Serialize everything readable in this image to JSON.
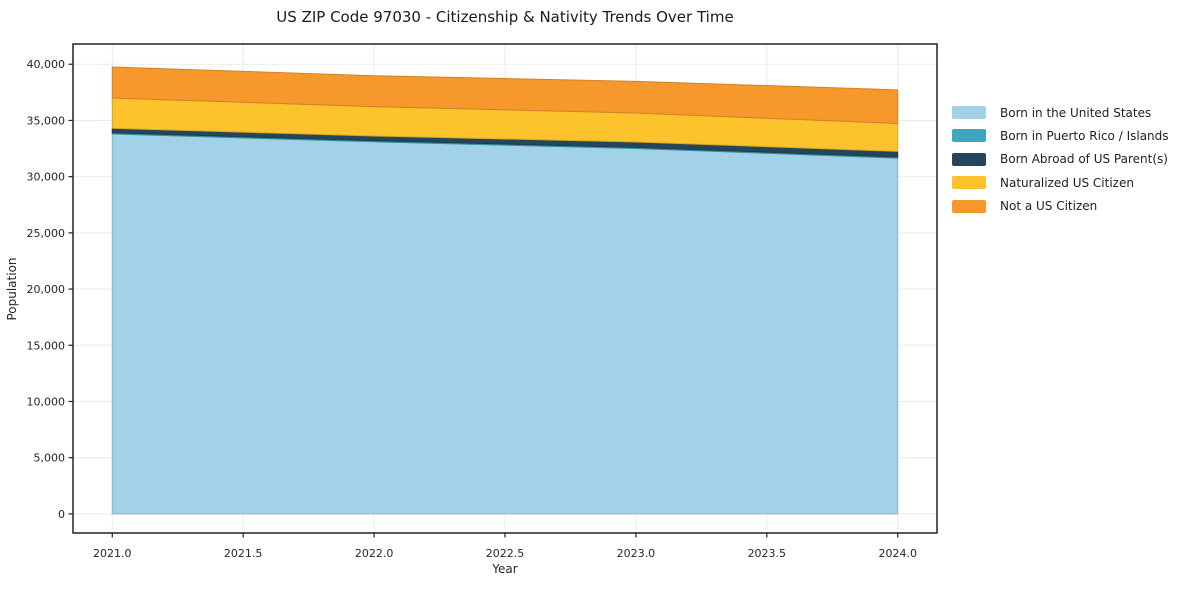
{
  "chart_data": {
    "type": "area",
    "stacked": true,
    "title": "US ZIP Code 97030 - Citizenship & Nativity Trends Over Time",
    "xlabel": "Year",
    "ylabel": "Population",
    "x": [
      2021,
      2022,
      2023,
      2024
    ],
    "series": [
      {
        "name": "Born in the United States",
        "color": "#a2d2e7",
        "values": [
          33800,
          33100,
          32500,
          31650
        ]
      },
      {
        "name": "Born in Puerto Rico / Islands",
        "color": "#3fa5c0",
        "values": [
          100,
          100,
          100,
          100
        ]
      },
      {
        "name": "Born Abroad of US Parent(s)",
        "color": "#24465a",
        "values": [
          400,
          420,
          480,
          500
        ]
      },
      {
        "name": "Naturalized US Citizen",
        "color": "#fcc32d",
        "values": [
          2700,
          2610,
          2580,
          2480
        ]
      },
      {
        "name": "Not a US Citizen",
        "color": "#f7982d",
        "values": [
          2750,
          2750,
          2820,
          2990
        ]
      }
    ],
    "xlim": [
      2020.85,
      2024.15
    ],
    "ylim": [
      -1700,
      41800
    ],
    "x_ticks": {
      "values": [
        2021.0,
        2021.5,
        2022.0,
        2022.5,
        2023.0,
        2023.5,
        2024.0
      ],
      "labels": [
        "2021.0",
        "2021.5",
        "2022.0",
        "2022.5",
        "2023.0",
        "2023.5",
        "2024.0"
      ]
    },
    "y_ticks": {
      "values": [
        0,
        5000,
        10000,
        15000,
        20000,
        25000,
        30000,
        35000,
        40000
      ],
      "labels": [
        "0",
        "5,000",
        "10,000",
        "15,000",
        "20,000",
        "25,000",
        "30,000",
        "35,000",
        "40,000"
      ]
    },
    "grid": true,
    "legend_position": "right"
  },
  "colors": {
    "background": "#ffffff",
    "grid": "#ebebeb",
    "spine": "#222222",
    "tick_text": "#262626"
  }
}
